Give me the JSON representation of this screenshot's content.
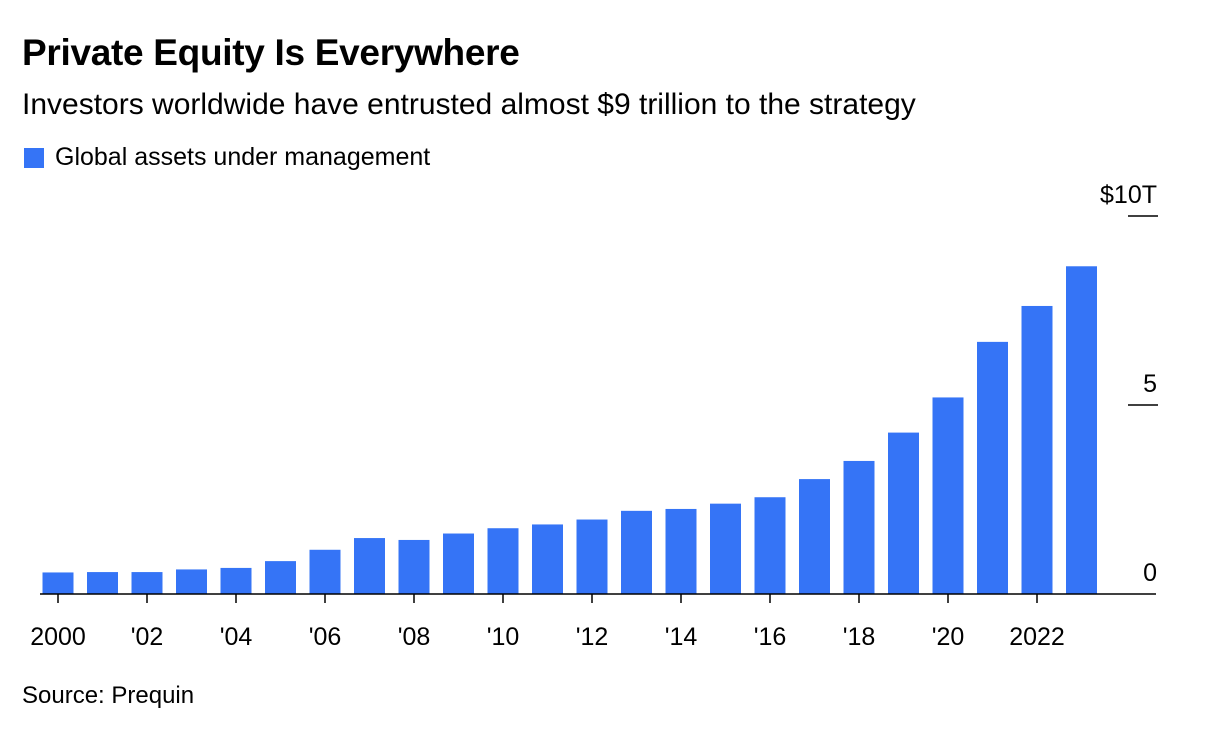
{
  "title": "Private Equity Is Everywhere",
  "subtitle": "Investors worldwide have entrusted almost $9 trillion to the strategy",
  "legend": {
    "label": "Global assets under management"
  },
  "source": "Source: Prequin",
  "colors": {
    "bar": "#3574F6",
    "axis": "#000000",
    "text": "#000000",
    "background": "#ffffff"
  },
  "chart_data": {
    "type": "bar",
    "title": "Private Equity Is Everywhere",
    "subtitle": "Investors worldwide have entrusted almost $9 trillion to the strategy",
    "xlabel": "",
    "ylabel": "",
    "y_unit": "trillion US dollars",
    "ylim": [
      0,
      10
    ],
    "y_ticks": [
      {
        "value": 0,
        "label": "0"
      },
      {
        "value": 5,
        "label": "5"
      },
      {
        "value": 10,
        "label": "$10T"
      }
    ],
    "y_axis_position": "right",
    "grid": false,
    "legend_position": "top-left",
    "x_tick_labels": [
      {
        "year": 2000,
        "label": "2000"
      },
      {
        "year": 2002,
        "label": "'02"
      },
      {
        "year": 2004,
        "label": "'04"
      },
      {
        "year": 2006,
        "label": "'06"
      },
      {
        "year": 2008,
        "label": "'08"
      },
      {
        "year": 2010,
        "label": "'10"
      },
      {
        "year": 2012,
        "label": "'12"
      },
      {
        "year": 2014,
        "label": "'14"
      },
      {
        "year": 2016,
        "label": "'16"
      },
      {
        "year": 2018,
        "label": "'18"
      },
      {
        "year": 2020,
        "label": "'20"
      },
      {
        "year": 2022,
        "label": "2022"
      }
    ],
    "series": [
      {
        "name": "Global assets under management",
        "x": [
          2000,
          2001,
          2002,
          2003,
          2004,
          2005,
          2006,
          2007,
          2008,
          2009,
          2010,
          2011,
          2012,
          2013,
          2014,
          2015,
          2016,
          2017,
          2018,
          2019,
          2020,
          2021,
          2022,
          2023
        ],
        "values": [
          0.57,
          0.58,
          0.58,
          0.65,
          0.69,
          0.87,
          1.17,
          1.48,
          1.43,
          1.6,
          1.74,
          1.84,
          1.97,
          2.2,
          2.25,
          2.39,
          2.56,
          3.04,
          3.52,
          4.27,
          5.2,
          6.67,
          7.62,
          8.67
        ]
      }
    ]
  }
}
